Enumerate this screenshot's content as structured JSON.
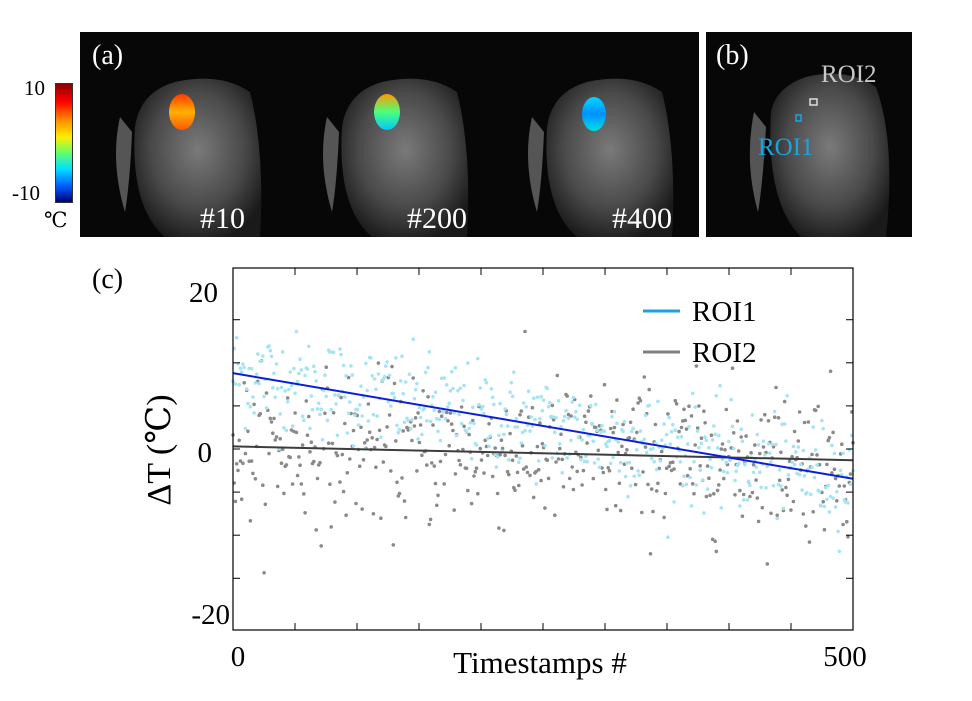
{
  "panels": {
    "a_label": "(a)",
    "b_label": "(b)",
    "c_label": "(c)",
    "frames": [
      "#10",
      "#200",
      "#400"
    ],
    "roi1_label": "ROI1",
    "roi2_label": "ROI2"
  },
  "colorbar": {
    "max_label": "10",
    "min_label": "-10",
    "unit": "℃"
  },
  "colors": {
    "roi1_line": "#0a1fd6",
    "roi1_points": "#a6e4f2",
    "roi2_line": "#3d3d3d",
    "roi2_points": "#8a8a8a",
    "roi1_legend": "#1aa3e0",
    "roi2_legend": "#808080"
  },
  "chart_data": {
    "type": "scatter",
    "title": "",
    "xlabel": "Timestamps #",
    "ylabel": "ΔT (℃)",
    "xlim": [
      0,
      500
    ],
    "ylim": [
      -21,
      21
    ],
    "x_tick_labels": [
      "0",
      "500"
    ],
    "y_tick_labels": [
      "20",
      "0",
      "-20"
    ],
    "legend": {
      "position": "top-right",
      "entries": [
        "ROI1",
        "ROI2"
      ]
    },
    "series": [
      {
        "name": "ROI1",
        "kind": "scatter+fit",
        "fit": {
          "slope": -0.0245,
          "intercept": 8.8
        },
        "noise_sd": 3.0,
        "n_points": 500
      },
      {
        "name": "ROI2",
        "kind": "scatter+fit",
        "fit": {
          "slope": -0.0032,
          "intercept": 0.3
        },
        "noise_sd": 4.3,
        "n_points": 500
      }
    ]
  }
}
